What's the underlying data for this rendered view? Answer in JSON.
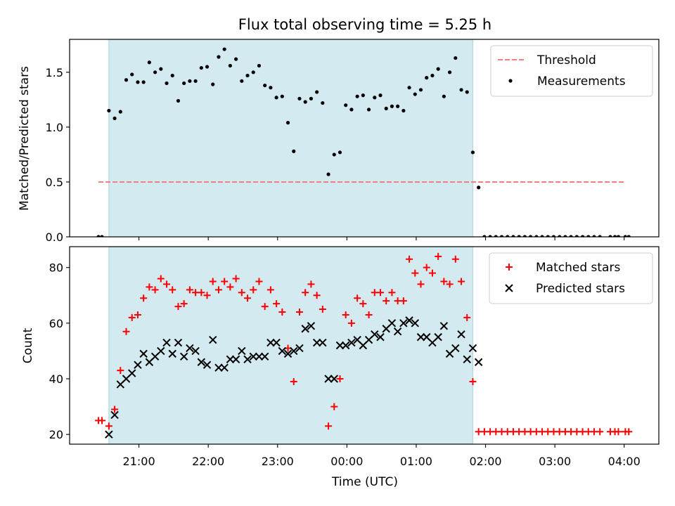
{
  "chart_data": {
    "title": "Flux total observing time = 5.25 h",
    "xlabel": "Time (UTC)",
    "xlim": [
      "20:00",
      "04:30"
    ],
    "xticks": [
      "21:00",
      "22:00",
      "23:00",
      "00:00",
      "01:00",
      "02:00",
      "03:00",
      "04:00"
    ],
    "shaded_interval": [
      "20:34",
      "01:49"
    ],
    "shade_color": "#d3eaf0",
    "panels": [
      {
        "type": "scatter",
        "ylabel": "Matched/Predicted stars",
        "ylim": [
          0,
          1.8
        ],
        "yticks": [
          0.0,
          0.5,
          1.0,
          1.5
        ],
        "legend_position": "top-right",
        "threshold": {
          "name": "Threshold",
          "value": 0.5,
          "x": [
            "20:25",
            "04:00"
          ],
          "color": "#f08080"
        },
        "series": [
          {
            "name": "Measurements",
            "color": "#000000",
            "x": [
              "20:25",
              "20:28",
              "20:34",
              "20:39",
              "20:44",
              "20:49",
              "20:54",
              "20:59",
              "21:04",
              "21:09",
              "21:14",
              "21:19",
              "21:24",
              "21:29",
              "21:34",
              "21:39",
              "21:44",
              "21:49",
              "21:54",
              "21:59",
              "22:04",
              "22:09",
              "22:14",
              "22:19",
              "22:24",
              "22:29",
              "22:34",
              "22:39",
              "22:44",
              "22:49",
              "22:54",
              "22:59",
              "23:04",
              "23:09",
              "23:14",
              "23:19",
              "23:24",
              "23:29",
              "23:34",
              "23:39",
              "23:44",
              "23:49",
              "23:54",
              "23:59",
              "00:04",
              "00:09",
              "00:14",
              "00:19",
              "00:24",
              "00:29",
              "00:34",
              "00:39",
              "00:44",
              "00:49",
              "00:54",
              "00:59",
              "01:04",
              "01:09",
              "01:14",
              "01:19",
              "01:24",
              "01:29",
              "01:34",
              "01:39",
              "01:44",
              "01:49",
              "01:54",
              "01:59",
              "02:04",
              "02:09",
              "02:14",
              "02:19",
              "02:24",
              "02:29",
              "02:34",
              "02:39",
              "02:44",
              "02:49",
              "02:54",
              "02:59",
              "03:04",
              "03:09",
              "03:14",
              "03:19",
              "03:24",
              "03:29",
              "03:34",
              "03:39",
              "03:48",
              "03:52",
              "03:55",
              "04:01",
              "04:04"
            ],
            "y": [
              0.0,
              0.0,
              1.15,
              1.08,
              1.14,
              1.43,
              1.48,
              1.41,
              1.41,
              1.59,
              1.5,
              1.53,
              1.4,
              1.47,
              1.24,
              1.4,
              1.42,
              1.42,
              1.54,
              1.55,
              1.39,
              1.64,
              1.71,
              1.56,
              1.62,
              1.42,
              1.47,
              1.5,
              1.56,
              1.38,
              1.36,
              1.27,
              1.28,
              1.04,
              0.78,
              1.26,
              1.23,
              1.26,
              1.32,
              1.22,
              0.57,
              0.75,
              0.77,
              1.2,
              1.16,
              1.28,
              1.29,
              1.16,
              1.27,
              1.29,
              1.17,
              1.19,
              1.19,
              1.15,
              1.36,
              1.3,
              1.34,
              1.45,
              1.47,
              1.53,
              1.28,
              1.5,
              1.63,
              1.34,
              1.32,
              0.77,
              0.45,
              0.0,
              0.0,
              0.0,
              0.0,
              0.0,
              0.0,
              0.0,
              0.0,
              0.0,
              0.0,
              0.0,
              0.0,
              0.0,
              0.0,
              0.0,
              0.0,
              0.0,
              0.0,
              0.0,
              0.0,
              0.0,
              0.0,
              0.0,
              0.0,
              0.0,
              0.0
            ]
          }
        ]
      },
      {
        "type": "scatter",
        "ylabel": "Count",
        "ylim": [
          16.5,
          87.5
        ],
        "yticks": [
          20,
          40,
          60,
          80
        ],
        "legend_position": "top-right",
        "series": [
          {
            "name": "Matched stars",
            "marker": "+",
            "color": "#ff0000",
            "x": [
              "20:25",
              "20:28",
              "20:34",
              "20:39",
              "20:44",
              "20:49",
              "20:54",
              "20:59",
              "21:04",
              "21:09",
              "21:14",
              "21:19",
              "21:24",
              "21:29",
              "21:34",
              "21:39",
              "21:44",
              "21:49",
              "21:54",
              "21:59",
              "22:04",
              "22:09",
              "22:14",
              "22:19",
              "22:24",
              "22:29",
              "22:34",
              "22:39",
              "22:44",
              "22:49",
              "22:54",
              "22:59",
              "23:04",
              "23:09",
              "23:14",
              "23:19",
              "23:24",
              "23:29",
              "23:34",
              "23:39",
              "23:44",
              "23:49",
              "23:54",
              "23:59",
              "00:04",
              "00:09",
              "00:14",
              "00:19",
              "00:24",
              "00:29",
              "00:34",
              "00:39",
              "00:44",
              "00:49",
              "00:54",
              "00:59",
              "01:04",
              "01:09",
              "01:14",
              "01:19",
              "01:24",
              "01:29",
              "01:34",
              "01:39",
              "01:44",
              "01:49",
              "01:54",
              "01:59",
              "02:04",
              "02:09",
              "02:14",
              "02:19",
              "02:24",
              "02:29",
              "02:34",
              "02:39",
              "02:44",
              "02:49",
              "02:54",
              "02:59",
              "03:04",
              "03:09",
              "03:14",
              "03:19",
              "03:24",
              "03:29",
              "03:34",
              "03:39",
              "03:48",
              "03:52",
              "03:55",
              "04:01",
              "04:04"
            ],
            "y": [
              25,
              25,
              23,
              29,
              43,
              57,
              62,
              63,
              69,
              73,
              72,
              76,
              74,
              72,
              66,
              67,
              72,
              71,
              71,
              70,
              75,
              72,
              75,
              73,
              76,
              71,
              69,
              72,
              75,
              66,
              72,
              67,
              64,
              51,
              39,
              64,
              71,
              74,
              70,
              65,
              23,
              30,
              40,
              63,
              60,
              69,
              67,
              63,
              71,
              71,
              68,
              71,
              68,
              68,
              83,
              78,
              74,
              80,
              78,
              84,
              75,
              74,
              83,
              75,
              62,
              39,
              21,
              21,
              21,
              21,
              21,
              21,
              21,
              21,
              21,
              21,
              21,
              21,
              21,
              21,
              21,
              21,
              21,
              21,
              21,
              21,
              21,
              21,
              21,
              21,
              21,
              21,
              21
            ]
          },
          {
            "name": "Predicted stars",
            "marker": "x",
            "color": "#000000",
            "x": [
              "20:34",
              "20:39",
              "20:44",
              "20:49",
              "20:54",
              "20:59",
              "21:04",
              "21:09",
              "21:14",
              "21:19",
              "21:24",
              "21:29",
              "21:34",
              "21:39",
              "21:44",
              "21:49",
              "21:54",
              "21:59",
              "22:04",
              "22:09",
              "22:14",
              "22:19",
              "22:24",
              "22:29",
              "22:34",
              "22:39",
              "22:44",
              "22:49",
              "22:54",
              "22:59",
              "23:04",
              "23:09",
              "23:14",
              "23:19",
              "23:24",
              "23:29",
              "23:34",
              "23:39",
              "23:44",
              "23:49",
              "23:54",
              "23:59",
              "00:04",
              "00:09",
              "00:14",
              "00:19",
              "00:24",
              "00:29",
              "00:34",
              "00:39",
              "00:44",
              "00:49",
              "00:54",
              "00:59",
              "01:04",
              "01:09",
              "01:14",
              "01:19",
              "01:24",
              "01:29",
              "01:34",
              "01:39",
              "01:44",
              "01:49",
              "01:54"
            ],
            "y": [
              20,
              27,
              38,
              40,
              42,
              45,
              49,
              46,
              48,
              50,
              53,
              49,
              53,
              48,
              51,
              50,
              46,
              45,
              54,
              44,
              44,
              47,
              47,
              50,
              47,
              48,
              48,
              48,
              53,
              53,
              50,
              49,
              50,
              51,
              58,
              59,
              53,
              53,
              40,
              40,
              52,
              52,
              53,
              54,
              52,
              54,
              56,
              55,
              58,
              60,
              57,
              60,
              61,
              60,
              55,
              55,
              53,
              55,
              59,
              49,
              51,
              56,
              47,
              51,
              46
            ]
          }
        ]
      }
    ]
  }
}
